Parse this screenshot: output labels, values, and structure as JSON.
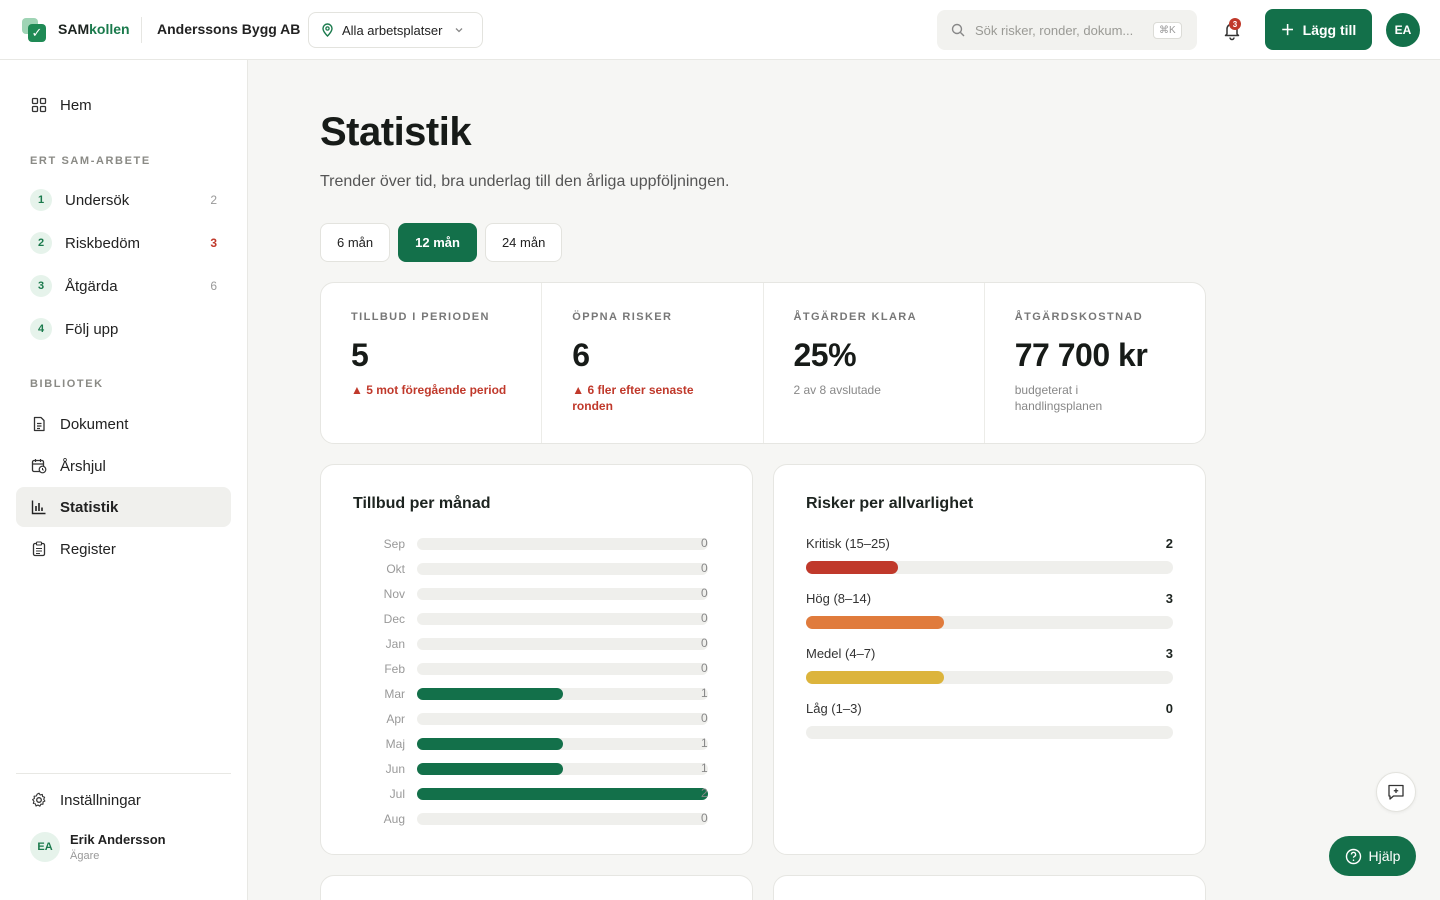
{
  "header": {
    "brand_part1": "SAM",
    "brand_part2": "kollen",
    "company": "Anderssons Bygg AB",
    "workplace_selector": "Alla arbetsplatser",
    "search_placeholder": "Sök risker, ronder, dokum...",
    "search_shortcut": "⌘K",
    "notification_count": "3",
    "add_label": "Lägg till",
    "avatar_initials": "EA"
  },
  "sidebar": {
    "home": "Hem",
    "section_work": "ERT SAM-ARBETE",
    "steps": [
      {
        "num": "1",
        "label": "Undersök",
        "count": "2",
        "warn": false
      },
      {
        "num": "2",
        "label": "Riskbedöm",
        "count": "3",
        "warn": true
      },
      {
        "num": "3",
        "label": "Åtgärda",
        "count": "6",
        "warn": false
      },
      {
        "num": "4",
        "label": "Följ upp",
        "count": "",
        "warn": false
      }
    ],
    "section_library": "BIBLIOTEK",
    "library": [
      "Dokument",
      "Årshjul",
      "Statistik",
      "Register"
    ],
    "active": "Statistik",
    "settings": "Inställningar",
    "user_initials": "EA",
    "user_name": "Erik Andersson",
    "user_role": "Ägare"
  },
  "main": {
    "title": "Statistik",
    "subtitle": "Trender över tid, bra underlag till den årliga uppföljningen.",
    "ranges": [
      "6 mån",
      "12 mån",
      "24 mån"
    ],
    "active_range": "12 mån",
    "kpis": [
      {
        "label": "TILLBUD I PERIODEN",
        "value": "5",
        "note": "▲ 5 mot föregående period",
        "trend": "up"
      },
      {
        "label": "ÖPPNA RISKER",
        "value": "6",
        "note": "▲ 6 fler efter senaste ronden",
        "trend": "up"
      },
      {
        "label": "ÅTGÄRDER KLARA",
        "value": "25%",
        "note": "2 av 8 avslutade",
        "trend": "neutral"
      },
      {
        "label": "ÅTGÄRDSKOSTNAD",
        "value": "77 700 kr",
        "note": "budgeterat i handlingsplanen",
        "trend": "neutral"
      }
    ],
    "incidents_title": "Tillbud per månad",
    "incidents": [
      {
        "month": "Sep",
        "value": 0
      },
      {
        "month": "Okt",
        "value": 0
      },
      {
        "month": "Nov",
        "value": 0
      },
      {
        "month": "Dec",
        "value": 0
      },
      {
        "month": "Jan",
        "value": 0
      },
      {
        "month": "Feb",
        "value": 0
      },
      {
        "month": "Mar",
        "value": 1
      },
      {
        "month": "Apr",
        "value": 0
      },
      {
        "month": "Maj",
        "value": 1
      },
      {
        "month": "Jun",
        "value": 1
      },
      {
        "month": "Jul",
        "value": 2
      },
      {
        "month": "Aug",
        "value": 0
      }
    ],
    "incidents_max": 2,
    "severity_title": "Risker per allvarlighet",
    "severity": [
      {
        "label": "Kritisk (15–25)",
        "count": 2,
        "color": "#c0392b"
      },
      {
        "label": "Hög (8–14)",
        "count": 3,
        "color": "#e07b3c"
      },
      {
        "label": "Medel (4–7)",
        "count": 3,
        "color": "#dcb43c"
      },
      {
        "label": "Låg (1–3)",
        "count": 0,
        "color": "#8bbf9f"
      }
    ],
    "severity_max": 8
  },
  "help_label": "Hjälp"
}
